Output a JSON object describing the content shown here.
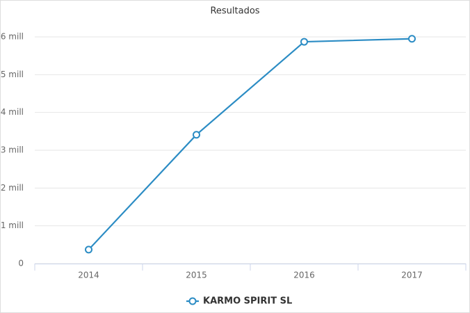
{
  "chart_data": {
    "type": "line",
    "title": "Resultados",
    "categories": [
      "2014",
      "2015",
      "2016",
      "2017"
    ],
    "series": [
      {
        "name": "KARMO SPIRIT SL",
        "color": "#2b8cc4",
        "values": [
          370000,
          3410000,
          5870000,
          5950000
        ]
      }
    ],
    "ylim": [
      0,
      6000000
    ],
    "yticks": [
      0,
      {
        "value": 1000000,
        "label": "1 mill"
      },
      {
        "value": 2000000,
        "label": "2 mill"
      },
      {
        "value": 3000000,
        "label": "3 mill"
      },
      {
        "value": 4000000,
        "label": "4 mill"
      },
      {
        "value": 5000000,
        "label": "5 mill"
      },
      {
        "value": 6000000,
        "label": "6 mill"
      }
    ],
    "grid": true,
    "legend": "bottom"
  }
}
